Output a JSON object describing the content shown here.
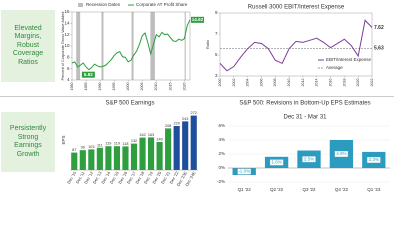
{
  "sidebars": [
    "Elevated Margins, Robust Coverage Ratios",
    "Persistently Strong Earnings Growth"
  ],
  "chart_data": [
    {
      "type": "line",
      "y_label": "Percent of Corporate Gross Value Added",
      "recessions": {
        "name": "Recession Dates",
        "color": "#bdbdbd",
        "spans": [
          [
            1981.5,
            1982.9
          ],
          [
            1990.5,
            1991.2
          ],
          [
            2001.2,
            2001.9
          ],
          [
            2007.9,
            2009.5
          ],
          [
            2020.1,
            2020.5
          ]
        ]
      },
      "x": [
        1980,
        1981,
        1982,
        1983,
        1984,
        1985,
        1986,
        1987,
        1988,
        1989,
        1990,
        1991,
        1992,
        1993,
        1994,
        1995,
        1996,
        1997,
        1998,
        1999,
        2000,
        2001,
        2002,
        2003,
        2004,
        2005,
        2006,
        2007,
        2008,
        2009,
        2010,
        2011,
        2012,
        2013,
        2014,
        2015,
        2016,
        2017,
        2018,
        2019,
        2020,
        2021,
        2022
      ],
      "series": [
        {
          "name": "Corporate AT Profit Share",
          "color": "#2e9e3e",
          "values": [
            7.0,
            7.2,
            6.3,
            6.6,
            7.0,
            6.3,
            5.82,
            6.2,
            6.8,
            6.5,
            6.3,
            6.4,
            6.6,
            7.1,
            7.6,
            8.3,
            8.8,
            9.0,
            8.1,
            8.0,
            7.2,
            7.5,
            8.4,
            9.1,
            10.3,
            11.8,
            12.3,
            10.6,
            8.6,
            10.3,
            12.0,
            11.6,
            12.4,
            12.0,
            12.1,
            11.5,
            10.9,
            10.8,
            11.2,
            11.0,
            11.3,
            13.6,
            14.62
          ]
        }
      ],
      "annotations": [
        {
          "x": 1986,
          "value": 5.82
        },
        {
          "x": 2022,
          "value": 14.62
        }
      ],
      "xlim": [
        1980,
        2022
      ],
      "xticks": [
        1980,
        1985,
        1990,
        1995,
        2000,
        2005,
        2010,
        2015,
        2020
      ],
      "ylim": [
        4,
        16
      ],
      "yticks": [
        4,
        6,
        8,
        10,
        12,
        14,
        16
      ]
    },
    {
      "type": "line",
      "title": "Russell 3000 EBIT/Interest Expense",
      "y_label": "Ratio",
      "x": [
        2000,
        2001,
        2002,
        2003,
        2004,
        2005,
        2006,
        2007,
        2008,
        2009,
        2010,
        2011,
        2012,
        2013,
        2014,
        2015,
        2016,
        2017,
        2018,
        2019,
        2020,
        2021,
        2022
      ],
      "series": [
        {
          "name": "EBIT/Interest Expense",
          "color": "#7b3f98",
          "values": [
            4.2,
            3.5,
            3.9,
            4.8,
            5.6,
            6.2,
            6.1,
            5.6,
            4.5,
            4.2,
            5.6,
            6.3,
            6.2,
            6.4,
            6.6,
            6.2,
            5.7,
            6.1,
            6.5,
            5.9,
            4.9,
            8.3,
            7.62
          ]
        }
      ],
      "average": {
        "name": "Average",
        "value": 5.63,
        "color": "#9a9a9a"
      },
      "annotations": [
        {
          "x": 2022,
          "value": 7.62
        }
      ],
      "xlim": [
        2000,
        2022
      ],
      "xticks": [
        2000,
        2002,
        2004,
        2006,
        2008,
        2010,
        2012,
        2014,
        2016,
        2018,
        2020,
        2022
      ],
      "ylim": [
        3,
        9
      ],
      "yticks": [
        3,
        5,
        7,
        9
      ]
    },
    {
      "type": "bar",
      "title": "S&P 500 Earnings",
      "y_label": "EPS",
      "categories": [
        "Dec '10",
        "Dec '11",
        "Dec '12",
        "Dec '13",
        "Dec '14",
        "Dec '15",
        "Dec '16",
        "Dec '17",
        "Dec '18",
        "Dec '19",
        "Dec '20",
        "Dec '21",
        "Dec '22",
        "Dec '23E",
        "Dec '24E"
      ],
      "values": [
        87,
        99,
        103,
        111,
        119,
        119,
        118,
        132,
        162,
        163,
        140,
        208,
        220,
        243,
        272
      ],
      "colors": [
        "#2e9e3e",
        "#2e9e3e",
        "#2e9e3e",
        "#2e9e3e",
        "#2e9e3e",
        "#2e9e3e",
        "#2e9e3e",
        "#2e9e3e",
        "#2e9e3e",
        "#2e9e3e",
        "#2e9e3e",
        "#2e9e3e",
        "#1f4e9c",
        "#1f4e9c",
        "#1f4e9c"
      ],
      "ylim": [
        0,
        300
      ]
    },
    {
      "type": "bar",
      "title": "S&P 500: Revisions in Bottom-Up EPS Estimates",
      "subtitle": "Dec 31 - Mar 31",
      "categories": [
        "Q1 '22",
        "Q2 '22",
        "Q3 '22",
        "Q4 '22",
        "Q1 '23"
      ],
      "values": [
        -1.0,
        1.6,
        2.5,
        4.0,
        2.3
      ],
      "value_labels": [
        "-1.0%",
        "1.6%",
        "2.5%",
        "4.0%",
        "2.3%"
      ],
      "color": "#2b9cc0",
      "ylim": [
        -2,
        6
      ],
      "yticks": [
        {
          "value": -2,
          "label": "-2%"
        },
        {
          "value": 0,
          "label": "0%"
        },
        {
          "value": 2,
          "label": "2%"
        },
        {
          "value": 4,
          "label": "4%"
        },
        {
          "value": 6,
          "label": "6%"
        }
      ]
    }
  ]
}
